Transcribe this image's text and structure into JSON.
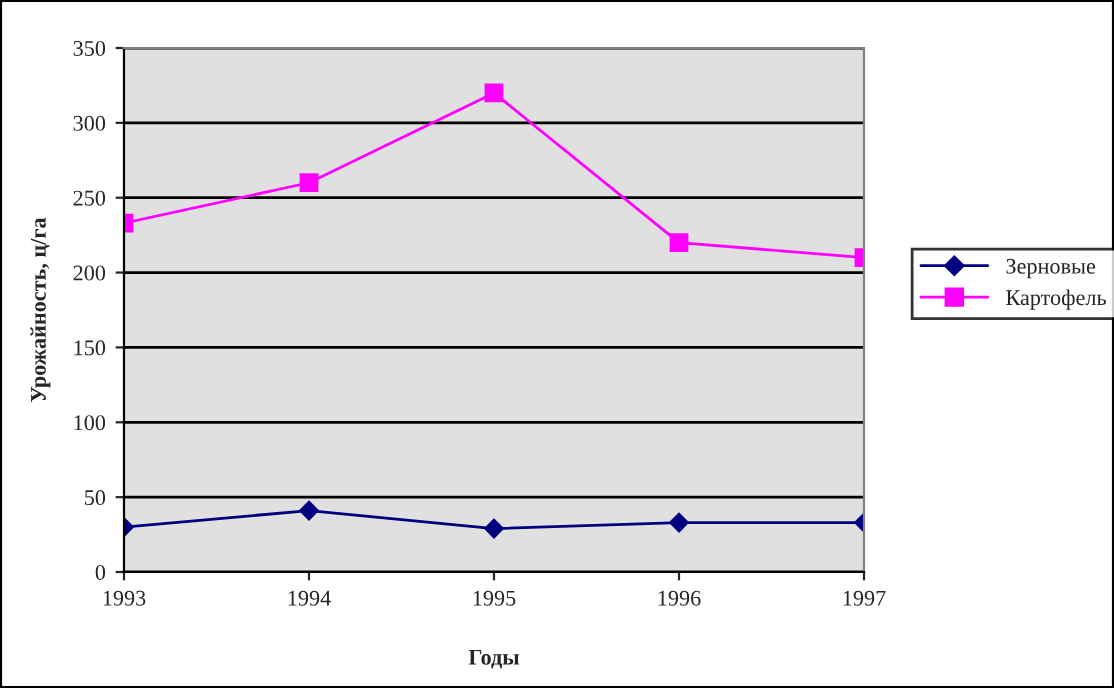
{
  "chart_data": {
    "type": "line",
    "xlabel": "Годы",
    "ylabel": "Урожайность, ц/га",
    "categories": [
      "1993",
      "1994",
      "1995",
      "1996",
      "1997"
    ],
    "series": [
      {
        "name": "Зерновые",
        "color": "#000080",
        "values": [
          30,
          41,
          29,
          33,
          33
        ],
        "marker": "diamond"
      },
      {
        "name": "Картофель",
        "color": "#ff00ff",
        "values": [
          233,
          260,
          320,
          220,
          210
        ],
        "marker": "square"
      }
    ],
    "ylim": [
      0,
      350
    ],
    "yticks": [
      0,
      50,
      100,
      150,
      200,
      250,
      300,
      350
    ],
    "grid": "y",
    "legend": "right",
    "line_style": "solid"
  }
}
